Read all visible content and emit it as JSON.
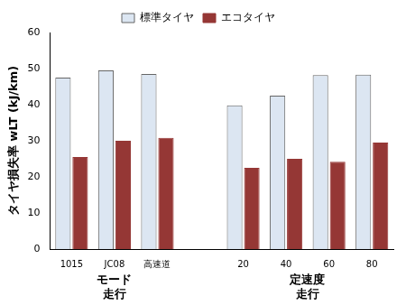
{
  "chart_data": {
    "type": "bar",
    "y_label": "タイヤ損失率 wLT (kJ/km)",
    "categories": [
      "1015",
      "JC08",
      "高速道",
      null,
      "20",
      "40",
      "60",
      "80"
    ],
    "x_groups": [
      {
        "label": [
          "モード",
          "走行"
        ],
        "categories": [
          "1015",
          "JC08",
          "高速道"
        ]
      },
      {
        "label": [
          "定速度",
          "走行"
        ],
        "categories": [
          "20",
          "40",
          "60",
          "80"
        ]
      }
    ],
    "series": [
      {
        "name": "標準タイヤ",
        "color": "#dce6f2",
        "values": [
          47.5,
          49.5,
          48.5,
          null,
          39.8,
          42.5,
          48.2,
          48.3
        ]
      },
      {
        "name": "エコタイヤ",
        "color": "#953735",
        "values": [
          25.5,
          30.0,
          30.8,
          null,
          22.5,
          25.0,
          24.2,
          29.5
        ]
      }
    ],
    "ylim": [
      0,
      60
    ],
    "yticks": [
      0,
      10,
      20,
      30,
      40,
      50,
      60
    ],
    "grid": false,
    "legend": "top"
  }
}
